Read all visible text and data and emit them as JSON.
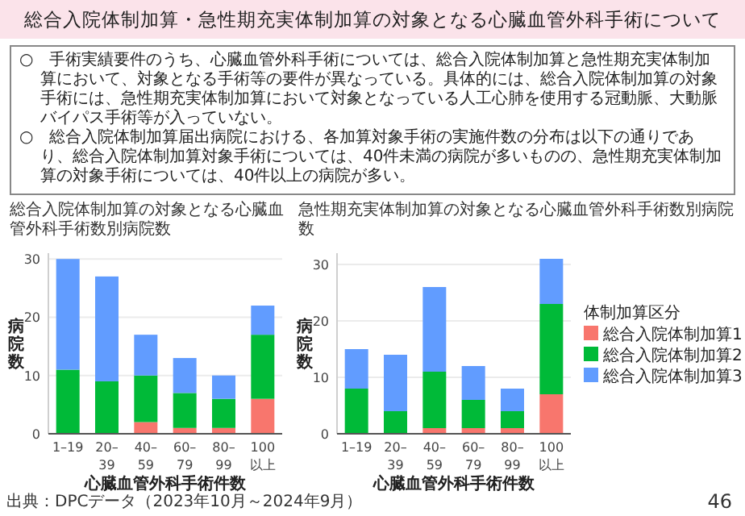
{
  "chart_data": [
    {
      "type": "other",
      "title": "総合入院体制加算・急性期充実体制加算の対象となる心臓血管外科手術について",
      "annotations": [
        "○　手術実績要件のうち、心臓血管外科手術については、総合入院体制加算と急性期充実体制加算において、対象となる手術等の要件が異なっている。具体的には、総合入院体制加算の対象手術には、急性期充実体制加算において対象となっている人工心肺を使用する冠動脈、大動脈バイパス手術等が入っていない。",
        "○　総合入院体制加算届出病院における、各加算対象手術の実施件数の分布は以下の通りであり、総合入院体制加算対象手術については、40件未満の病院が多いものの、急性期充実体制加算の対象手術については、40件以上の病院が多い。"
      ]
    },
    {
      "type": "bar",
      "stacked": true,
      "title": "総合入院体制加算の対象となる心臓血管外科手術数別病院数",
      "xlabel": "心臓血管外科手術件数",
      "ylabel": "病院数",
      "categories": [
        "1–19",
        "20–39",
        "40–59",
        "60–79",
        "80–99",
        "100以上"
      ],
      "ylim": [
        0,
        31
      ],
      "yticks": [
        0,
        10,
        20,
        30
      ],
      "grid": "y",
      "legend": false,
      "series": [
        {
          "color": "#f8766d",
          "values": [
            0,
            0,
            2,
            1,
            1,
            6
          ]
        },
        {
          "color": "#00ba38",
          "values": [
            11,
            9,
            8,
            6,
            5,
            11
          ]
        },
        {
          "color": "#619cff",
          "values": [
            19,
            18,
            7,
            6,
            4,
            5
          ]
        }
      ]
    },
    {
      "type": "bar",
      "stacked": true,
      "title": "急性期充実体制加算の対象となる心臓血管外科手術数別病院数",
      "xlabel": "心臓血管外科手術件数",
      "ylabel": "病院数",
      "categories": [
        "1–19",
        "20–39",
        "40–59",
        "60–79",
        "80–99",
        "100以上"
      ],
      "ylim": [
        0,
        32
      ],
      "yticks": [
        0,
        10,
        20,
        30
      ],
      "grid": "y",
      "legend": "right",
      "legend_title": "体制加算区分",
      "series": [
        {
          "name": "総合入院体制加算1",
          "color": "#f8766d",
          "values": [
            0,
            0,
            1,
            1,
            1,
            7
          ]
        },
        {
          "name": "総合入院体制加算2",
          "color": "#00ba38",
          "values": [
            8,
            4,
            10,
            5,
            3,
            16
          ]
        },
        {
          "name": "総合入院体制加算3",
          "color": "#619cff",
          "values": [
            7,
            10,
            15,
            6,
            4,
            8
          ]
        }
      ],
      "annotations": [
        "出典：DPCデータ（2023年10月～2024年9月）",
        "46"
      ]
    }
  ]
}
